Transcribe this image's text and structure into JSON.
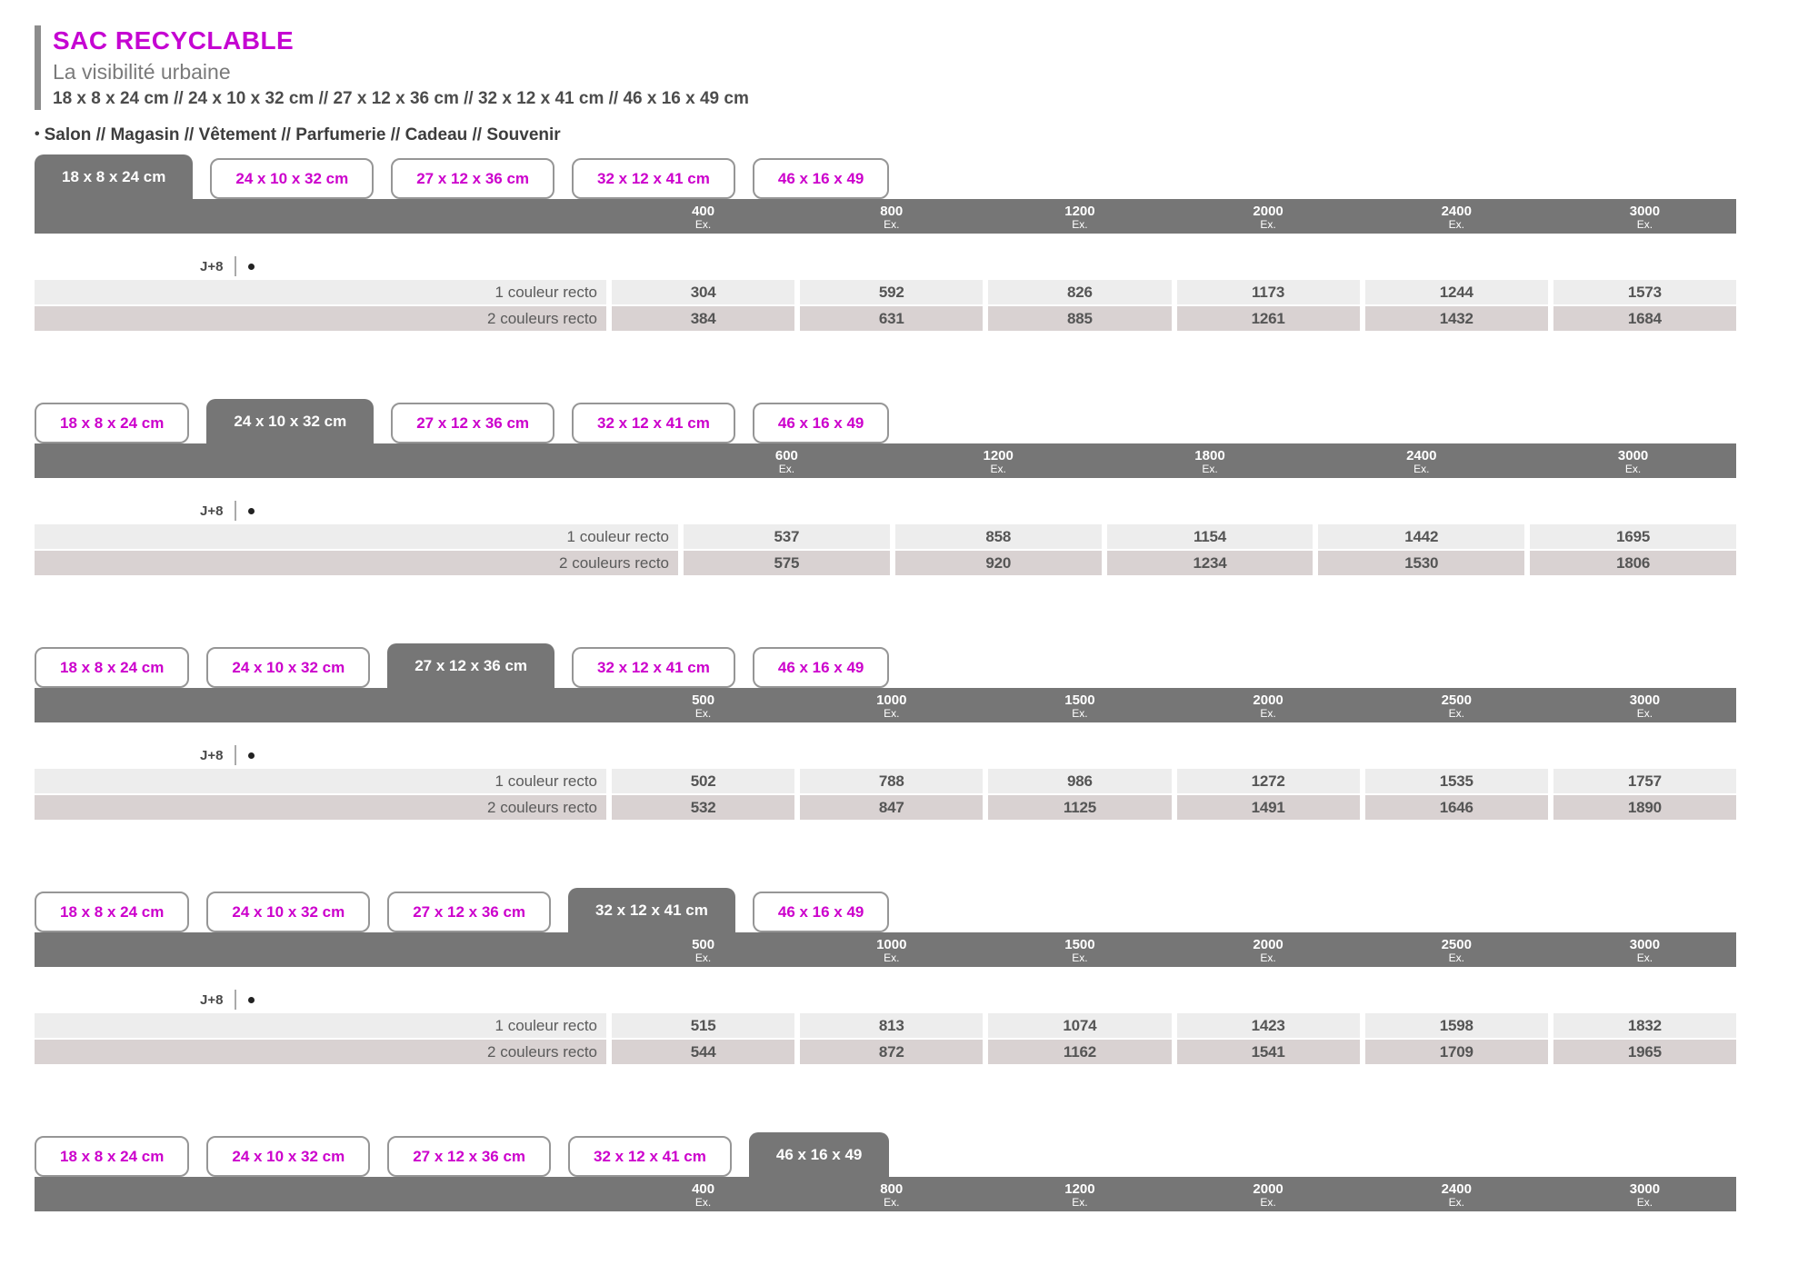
{
  "page": {
    "title": "SAC RECYCLABLE",
    "subtitle": "La visibilité urbaine",
    "dimensions_line": "18 x 8 x 24 cm // 24 x 10 x 32 cm // 27 x 12 x 36 cm // 32 x 12 x 41 cm // 46 x 16 x 49 cm",
    "bullet": "•",
    "categories_line": "Salon // Magasin // Vêtement // Parfumerie // Cadeau // Souvenir"
  },
  "colors": {
    "accent_magenta": "#c505d2",
    "tab_text_magenta": "#cc00cc",
    "bar_gray": "#767676",
    "row1_bg": "#ededed",
    "row2_bg": "#d9d2d2",
    "left_bar_gray": "#8c8c8c"
  },
  "tabs": [
    "18 x 8 x 24 cm",
    "24 x 10 x 32 cm",
    "27 x 12 x 36 cm",
    "32 x 12 x 41 cm",
    "46 x 16 x 49"
  ],
  "unit_label": "Ex.",
  "delay_label": "J+8",
  "row_labels": [
    "1 couleur recto",
    "2 couleurs recto"
  ],
  "sections": [
    {
      "active_tab": 0,
      "quantities": [
        400,
        800,
        1200,
        2000,
        2400,
        3000
      ],
      "rows": [
        [
          304,
          592,
          826,
          1173,
          1244,
          1573
        ],
        [
          384,
          631,
          885,
          1261,
          1432,
          1684
        ]
      ],
      "show_rows": true
    },
    {
      "active_tab": 1,
      "quantities": [
        600,
        1200,
        1800,
        2400,
        3000
      ],
      "rows": [
        [
          537,
          858,
          1154,
          1442,
          1695
        ],
        [
          575,
          920,
          1234,
          1530,
          1806
        ]
      ],
      "show_rows": true
    },
    {
      "active_tab": 2,
      "quantities": [
        500,
        1000,
        1500,
        2000,
        2500,
        3000
      ],
      "rows": [
        [
          502,
          788,
          986,
          1272,
          1535,
          1757
        ],
        [
          532,
          847,
          1125,
          1491,
          1646,
          1890
        ]
      ],
      "show_rows": true
    },
    {
      "active_tab": 3,
      "quantities": [
        500,
        1000,
        1500,
        2000,
        2500,
        3000
      ],
      "rows": [
        [
          515,
          813,
          1074,
          1423,
          1598,
          1832
        ],
        [
          544,
          872,
          1162,
          1541,
          1709,
          1965
        ]
      ],
      "show_rows": true
    },
    {
      "active_tab": 4,
      "quantities": [
        400,
        800,
        1200,
        2000,
        2400,
        3000
      ],
      "rows": [],
      "show_rows": false
    }
  ]
}
